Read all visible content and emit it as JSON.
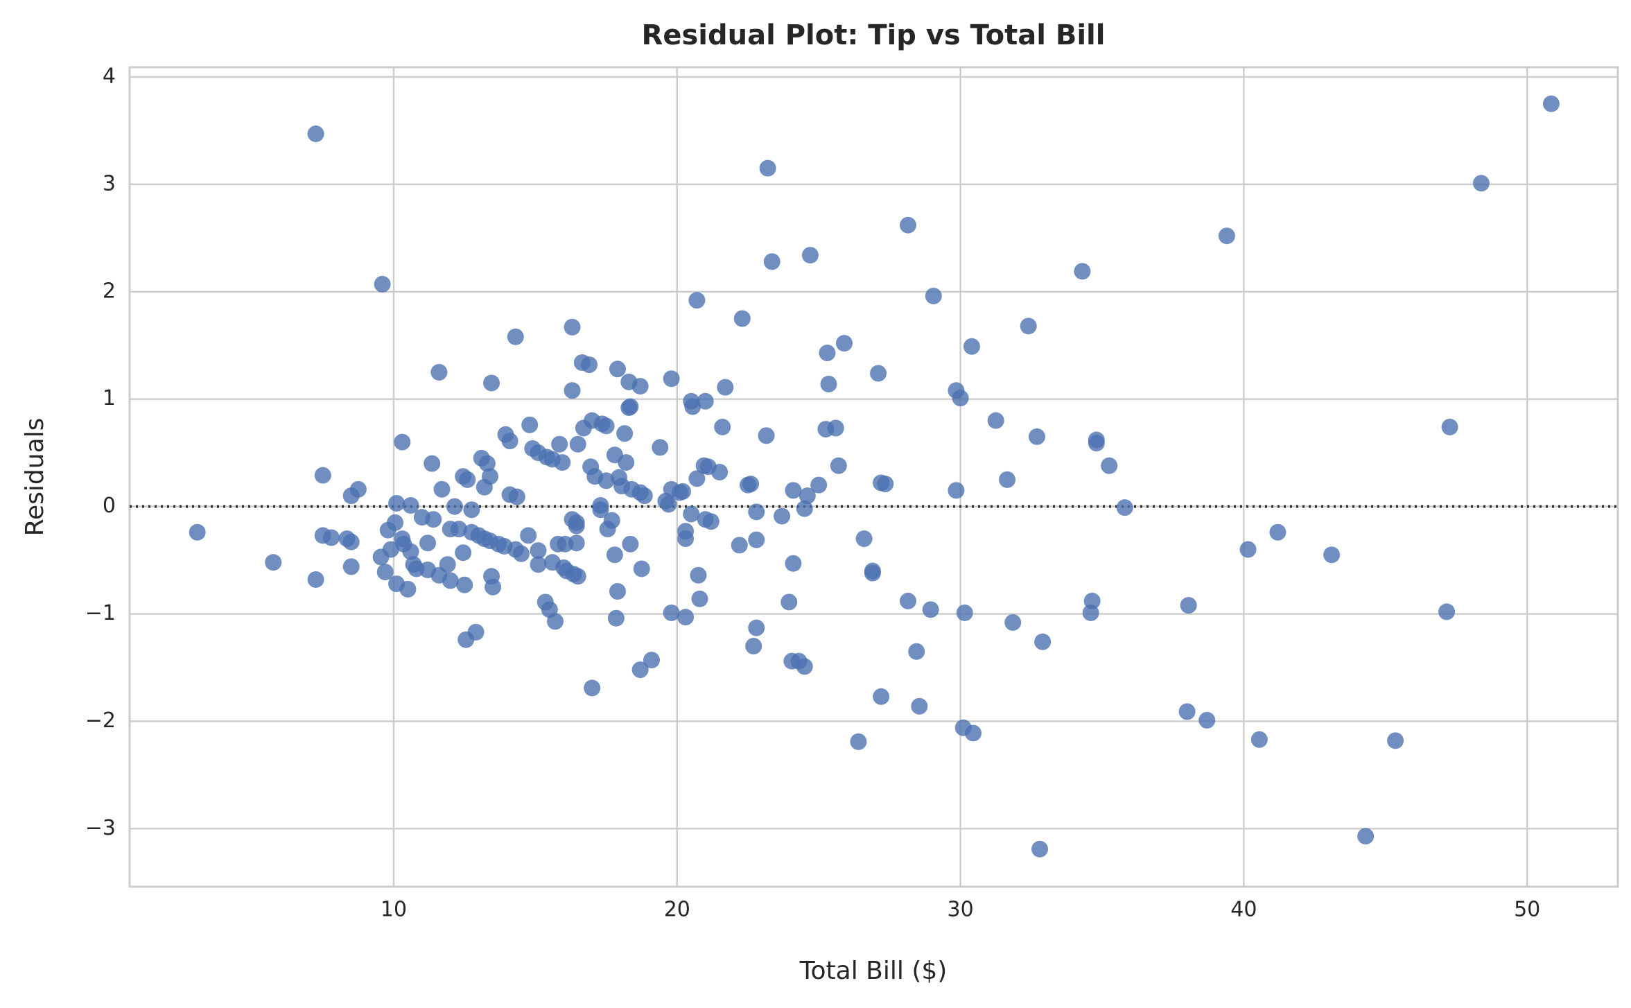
{
  "chart_data": {
    "type": "scatter",
    "title": "Residual Plot: Tip vs Total Bill",
    "x_label": "Total Bill ($)",
    "y_label": "Residuals",
    "x": [
      3.07,
      5.75,
      7.25,
      7.25,
      7.5,
      7.5,
      7.8,
      8.35,
      8.5,
      8.5,
      8.5,
      8.75,
      9.6,
      9.55,
      9.7,
      9.8,
      9.9,
      10.05,
      10.1,
      10.1,
      10.3,
      10.3,
      10.35,
      10.5,
      10.6,
      10.6,
      10.7,
      10.8,
      11.0,
      11.2,
      11.2,
      11.35,
      11.4,
      11.6,
      11.6,
      11.7,
      11.9,
      12.0,
      12.0,
      12.15,
      12.3,
      12.45,
      12.45,
      12.5,
      12.55,
      12.6,
      12.75,
      12.75,
      12.9,
      13.0,
      13.1,
      13.2,
      13.2,
      13.3,
      13.4,
      13.4,
      13.45,
      13.45,
      13.5,
      13.7,
      13.9,
      13.95,
      14.1,
      14.1,
      14.3,
      14.3,
      14.35,
      14.5,
      14.75,
      14.8,
      14.9,
      15.1,
      15.1,
      15.1,
      15.35,
      15.4,
      15.5,
      15.6,
      15.6,
      15.7,
      15.8,
      15.85,
      15.95,
      16.0,
      16.05,
      16.1,
      16.3,
      16.3,
      16.3,
      16.35,
      16.5,
      16.45,
      16.45,
      16.45,
      16.5,
      16.65,
      16.7,
      16.9,
      16.95,
      17.0,
      17.0,
      17.1,
      17.3,
      17.3,
      17.35,
      17.5,
      17.5,
      17.55,
      17.7,
      17.8,
      17.8,
      17.85,
      17.9,
      17.9,
      17.95,
      18.05,
      18.15,
      18.2,
      18.3,
      18.3,
      18.35,
      18.35,
      18.4,
      18.7,
      18.7,
      18.7,
      18.75,
      18.85,
      19.1,
      19.4,
      19.6,
      19.7,
      19.8,
      19.8,
      19.8,
      20.1,
      20.2,
      20.3,
      20.3,
      20.3,
      20.5,
      20.5,
      20.55,
      20.7,
      20.7,
      20.75,
      20.8,
      20.95,
      21.0,
      21.0,
      21.1,
      21.2,
      21.5,
      21.6,
      21.7,
      22.2,
      22.3,
      22.5,
      22.6,
      22.7,
      22.8,
      22.8,
      22.8,
      23.15,
      23.2,
      23.35,
      23.7,
      23.95,
      24.05,
      24.1,
      24.1,
      24.3,
      24.5,
      24.5,
      24.6,
      24.7,
      25.0,
      25.25,
      25.3,
      25.35,
      25.6,
      25.7,
      25.9,
      26.4,
      26.6,
      26.9,
      26.9,
      27.1,
      27.2,
      27.2,
      27.35,
      28.15,
      28.15,
      28.45,
      28.55,
      28.95,
      29.05,
      29.85,
      29.85,
      30.0,
      30.1,
      30.15,
      30.4,
      30.45,
      31.25,
      31.65,
      31.85,
      32.4,
      32.7,
      32.8,
      32.9,
      34.3,
      34.6,
      34.65,
      34.8,
      34.8,
      35.25,
      35.8,
      38.0,
      38.05,
      38.7,
      39.4,
      40.15,
      40.55,
      41.2,
      43.1,
      44.3,
      45.35,
      47.16,
      47.27,
      48.38,
      50.85
    ],
    "series": [
      {
        "color": "#4c72b0",
        "values": [
          -0.24,
          -0.52,
          -0.68,
          3.47,
          0.29,
          -0.27,
          -0.29,
          -0.3,
          -0.33,
          -0.56,
          0.1,
          0.16,
          2.07,
          -0.47,
          -0.61,
          -0.22,
          -0.4,
          -0.15,
          0.03,
          -0.72,
          0.6,
          -0.3,
          -0.35,
          -0.77,
          -0.42,
          0.01,
          -0.54,
          -0.58,
          -0.1,
          -0.59,
          -0.34,
          0.4,
          -0.12,
          1.25,
          -0.64,
          0.16,
          -0.54,
          -0.21,
          -0.69,
          0.0,
          -0.21,
          -0.43,
          0.28,
          -0.73,
          -1.24,
          0.25,
          -0.24,
          -0.03,
          -1.17,
          -0.27,
          0.45,
          -0.3,
          0.18,
          0.4,
          -0.32,
          0.28,
          1.15,
          -0.65,
          -0.75,
          -0.35,
          -0.37,
          0.67,
          0.61,
          0.11,
          -0.4,
          1.58,
          0.09,
          -0.44,
          -0.27,
          0.76,
          0.54,
          0.5,
          -0.41,
          -0.54,
          -0.89,
          0.46,
          -0.96,
          0.44,
          -0.52,
          -1.07,
          -0.35,
          0.58,
          0.41,
          -0.57,
          -0.35,
          -0.6,
          -0.12,
          1.67,
          1.08,
          -0.63,
          -0.65,
          -0.34,
          -0.15,
          -0.18,
          0.58,
          1.34,
          0.73,
          1.32,
          0.37,
          -1.69,
          0.8,
          0.28,
          0.01,
          -0.03,
          0.77,
          0.75,
          0.24,
          -0.21,
          -0.13,
          0.48,
          -0.45,
          -1.04,
          -0.79,
          1.28,
          0.27,
          0.19,
          0.68,
          0.41,
          1.16,
          0.92,
          0.93,
          -0.35,
          0.16,
          0.13,
          -1.52,
          1.12,
          -0.58,
          0.1,
          -1.43,
          0.55,
          0.05,
          0.02,
          -0.99,
          0.16,
          1.19,
          0.13,
          0.14,
          -0.23,
          -0.3,
          -1.03,
          -0.07,
          0.98,
          0.93,
          0.26,
          1.92,
          -0.64,
          -0.86,
          0.38,
          0.98,
          -0.12,
          0.37,
          -0.14,
          0.32,
          0.74,
          1.11,
          -0.36,
          1.75,
          0.2,
          0.21,
          -1.3,
          -1.13,
          -0.31,
          -0.05,
          0.66,
          3.15,
          2.28,
          -0.09,
          -0.89,
          -1.44,
          0.15,
          -0.53,
          -1.44,
          -1.49,
          -0.02,
          0.1,
          2.34,
          0.2,
          0.72,
          1.43,
          1.14,
          0.73,
          0.38,
          1.52,
          -2.19,
          -0.3,
          -0.6,
          -0.62,
          1.24,
          -1.77,
          0.22,
          0.21,
          2.62,
          -0.88,
          -1.35,
          -1.86,
          -0.96,
          1.96,
          1.08,
          0.15,
          1.01,
          -2.06,
          -0.99,
          1.49,
          -2.11,
          0.8,
          0.25,
          -1.08,
          1.68,
          0.65,
          -3.19,
          -1.26,
          2.19,
          -0.99,
          -0.88,
          0.62,
          0.59,
          0.38,
          -0.01,
          -1.91,
          -0.92,
          -1.99,
          2.52,
          -0.4,
          -2.17,
          -0.24,
          -0.45,
          -3.07,
          -2.18,
          -0.98,
          0.74,
          3.01,
          3.75
        ]
      }
    ],
    "xlim": [
      0.68,
      53.2
    ],
    "ylim": [
      -3.54,
      4.09
    ],
    "xticks": [
      10,
      20,
      30,
      40,
      50
    ],
    "yticks": [
      {
        "value": -3,
        "label": "−3"
      },
      {
        "value": -2,
        "label": "−2"
      },
      {
        "value": -1,
        "label": "−1"
      },
      0,
      1,
      2,
      3,
      4
    ],
    "grid": true
  }
}
